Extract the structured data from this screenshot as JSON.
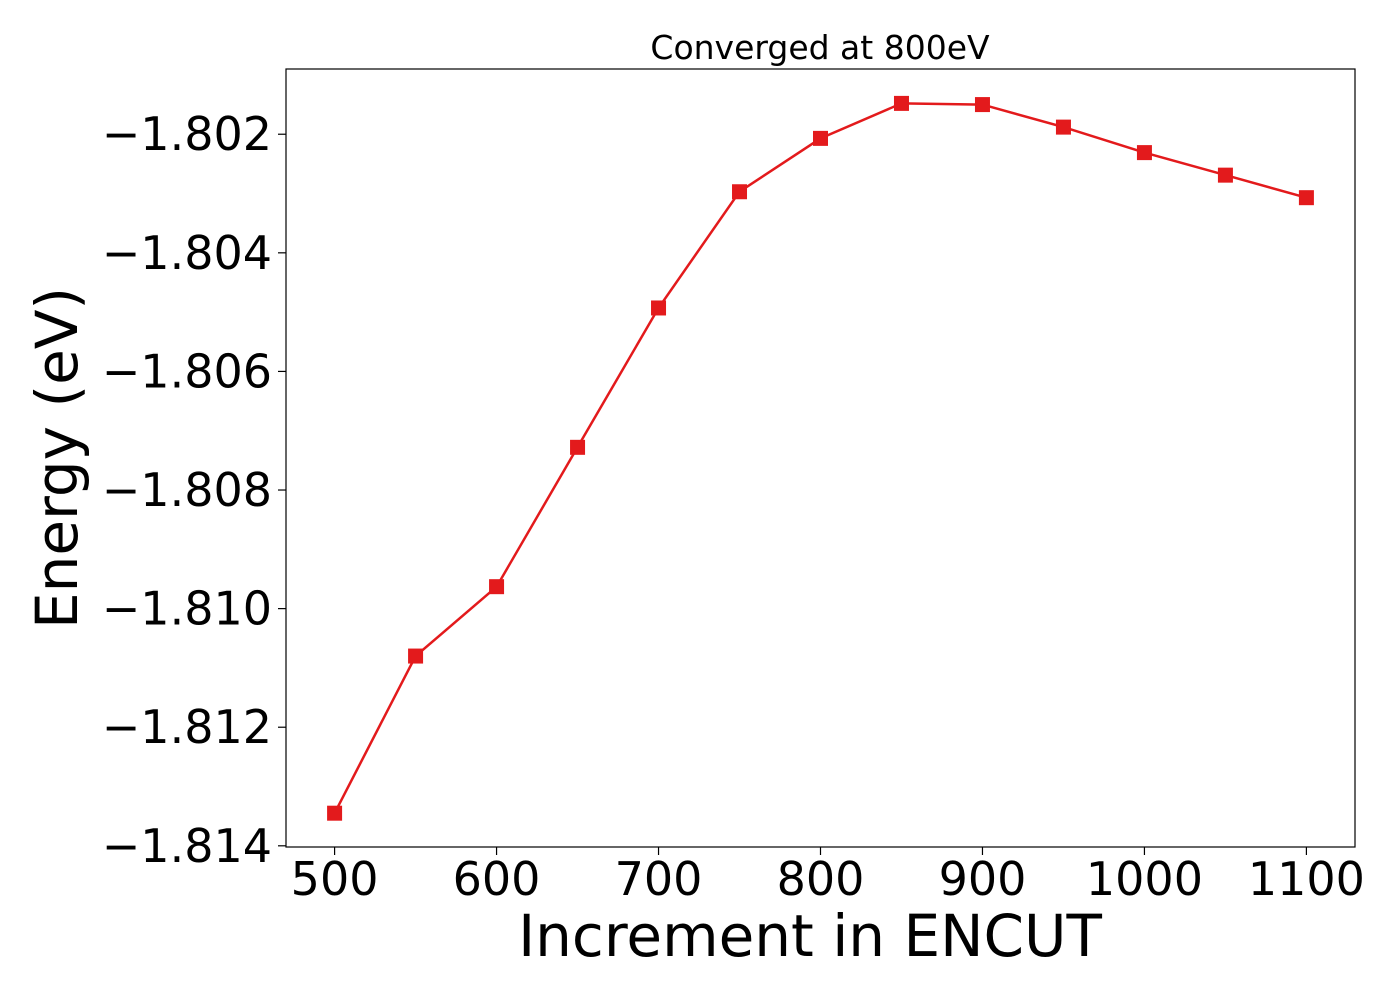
{
  "chart_data": {
    "type": "line",
    "title": "Converged at 800eV",
    "xlabel": "Increment in ENCUT",
    "ylabel": "Energy (eV)",
    "xlim": [
      470,
      1130
    ],
    "ylim": [
      -1.81402,
      -1.8009
    ],
    "x_ticks": [
      500,
      600,
      700,
      800,
      900,
      1000,
      1100
    ],
    "x_tick_labels": [
      "500",
      "600",
      "700",
      "800",
      "900",
      "1000",
      "1100"
    ],
    "y_ticks": [
      -1.802,
      -1.804,
      -1.806,
      -1.808,
      -1.81,
      -1.812,
      -1.814
    ],
    "y_tick_labels": [
      "−1.802",
      "−1.804",
      "−1.806",
      "−1.808",
      "−1.810",
      "−1.812",
      "−1.814"
    ],
    "grid": false,
    "series": [
      {
        "color": "#e31a1c",
        "marker": "square",
        "x": [
          500,
          550,
          600,
          650,
          700,
          750,
          800,
          850,
          900,
          950,
          1000,
          1050,
          1100
        ],
        "y": [
          -1.81345,
          -1.8108,
          -1.80963,
          -1.80728,
          -1.80493,
          -1.80297,
          -1.80207,
          -1.80148,
          -1.8015,
          -1.80188,
          -1.80231,
          -1.80269,
          -1.80307
        ]
      }
    ]
  }
}
